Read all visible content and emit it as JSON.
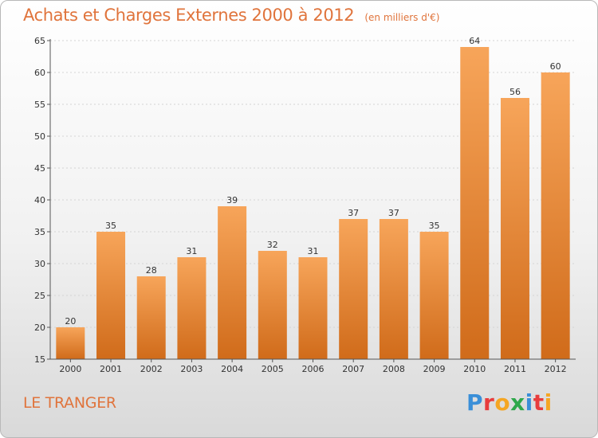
{
  "header": {
    "title": "Achats et Charges Externes 2000 à 2012",
    "unit": "(en milliers d'€)"
  },
  "footer": {
    "commune": "LE TRANGER",
    "logo_letters": [
      "P",
      "r",
      "o",
      "x",
      "i",
      "t",
      "i"
    ],
    "logo_colors": [
      "#3a8fd8",
      "#e83c3c",
      "#f5a623",
      "#2ea84a",
      "#3a8fd8",
      "#e83c3c",
      "#f5a623"
    ]
  },
  "chart_data": {
    "type": "bar",
    "title": "Achats et Charges Externes 2000 à 2012",
    "subtitle": "(en milliers d'€)",
    "categories": [
      "2000",
      "2001",
      "2002",
      "2003",
      "2004",
      "2005",
      "2006",
      "2007",
      "2008",
      "2009",
      "2010",
      "2011",
      "2012"
    ],
    "values": [
      20,
      35,
      28,
      31,
      39,
      32,
      31,
      37,
      37,
      35,
      64,
      56,
      60
    ],
    "ylim": [
      15,
      65
    ],
    "yticks": [
      15,
      20,
      25,
      30,
      35,
      40,
      45,
      50,
      55,
      60,
      65
    ],
    "grid": true,
    "bar_color_top": "#f7a55a",
    "bar_color_bottom": "#d06b1a"
  }
}
